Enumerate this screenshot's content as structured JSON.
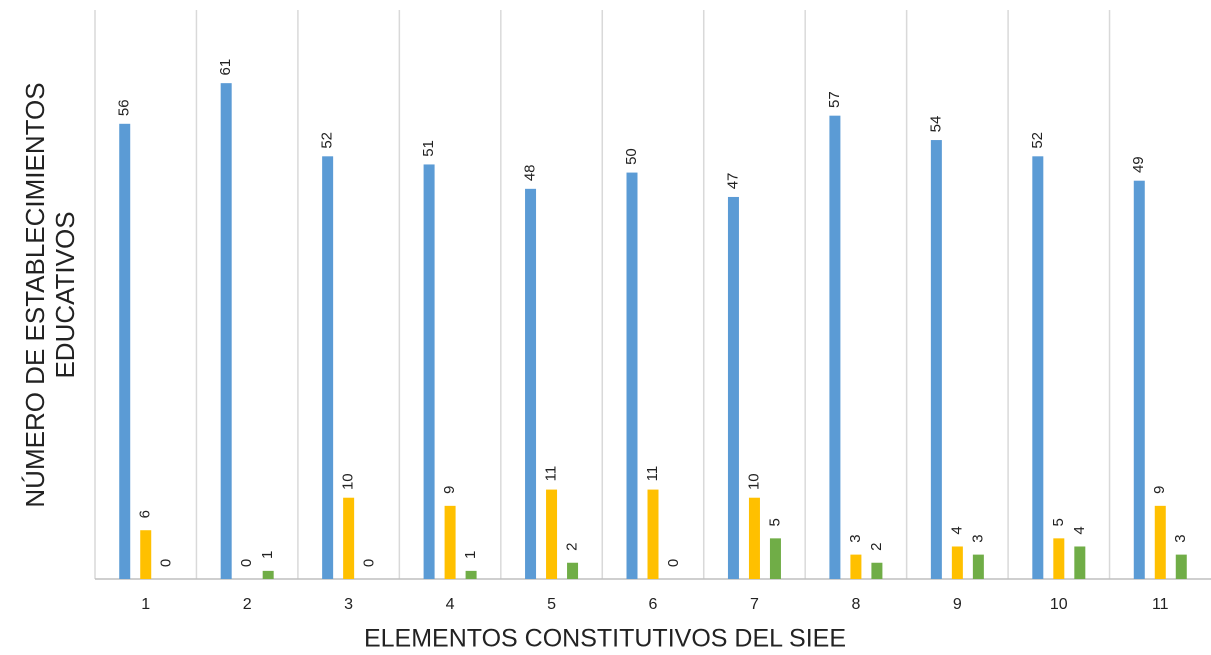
{
  "chart_data": {
    "type": "bar",
    "x_label": "ELEMENTOS CONSTITUTIVOS DEL SIEE",
    "y_label": [
      "NÚMERO DE ESTABLECIMIENTOS",
      "EDUCATIVOS"
    ],
    "categories": [
      "1",
      "2",
      "3",
      "4",
      "5",
      "6",
      "7",
      "8",
      "9",
      "10",
      "11"
    ],
    "series": [
      {
        "color": "#5b9bd5",
        "values": [
          56,
          61,
          52,
          51,
          48,
          50,
          47,
          57,
          54,
          52,
          49
        ]
      },
      {
        "color": "#ffc000",
        "values": [
          6,
          0,
          10,
          9,
          11,
          11,
          10,
          3,
          4,
          5,
          9
        ]
      },
      {
        "color": "#70ad47",
        "values": [
          0,
          1,
          0,
          1,
          2,
          0,
          5,
          2,
          3,
          4,
          3
        ]
      }
    ],
    "ylim": [
      0,
      70
    ]
  }
}
